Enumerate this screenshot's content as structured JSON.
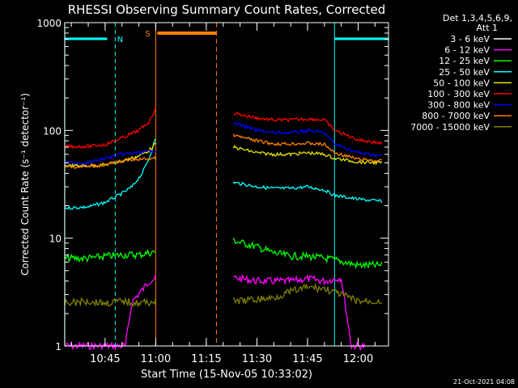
{
  "title": "RHESSI Observing Summary Count Rates, Corrected",
  "legend_header": [
    "Det 1,3,4,5,6,9,",
    "Att 1"
  ],
  "footer_date": "21-Oct-2021 04:08",
  "annotations": {
    "night_flag": "N",
    "saa_flag": "S"
  },
  "colors": {
    "background": "#000000",
    "axes": "#ffffff",
    "night_marker": "#00ffff",
    "saa_marker": "#ff8000"
  },
  "chart_data": {
    "type": "line",
    "title": "RHESSI Observing Summary Count Rates, Corrected",
    "xlabel": "Start Time (15-Nov-05 10:33:02)",
    "ylabel": "Corrected Count Rate (s⁻¹ detector⁻¹)",
    "yscale": "log",
    "xlim": [
      "10:33:02",
      "12:09:00"
    ],
    "ylim": [
      1,
      1000
    ],
    "x_ticks": [
      "10:45",
      "11:00",
      "11:15",
      "11:30",
      "11:45",
      "12:00"
    ],
    "y_ticks": [
      "1",
      "10",
      "100",
      "1000"
    ],
    "grid": false,
    "legend_position": "right",
    "gap": [
      "11:00",
      "11:23"
    ],
    "night_intervals": [
      [
        "10:33",
        "10:48"
      ],
      [
        "11:53",
        "12:09"
      ]
    ],
    "saa_interval": [
      "11:00",
      "11:18"
    ],
    "series": [
      {
        "name": "3 - 6 keV",
        "color": "#ffffff",
        "points": []
      },
      {
        "name": "6 - 12 keV",
        "color": "#ff00ff",
        "points": [
          [
            "10:33",
            1
          ],
          [
            "10:45",
            1
          ],
          [
            "10:51",
            1
          ],
          [
            "10:53",
            2.6
          ],
          [
            "10:56",
            3.3
          ],
          [
            "10:58",
            4.0
          ],
          [
            "11:00",
            4.3
          ],
          [
            "11:23",
            4.3
          ],
          [
            "11:30",
            4.0
          ],
          [
            "11:35",
            4.0
          ],
          [
            "11:40",
            4.0
          ],
          [
            "11:45",
            4.2
          ],
          [
            "11:50",
            4.0
          ],
          [
            "11:55",
            4.3
          ],
          [
            "11:58",
            1
          ],
          [
            "12:02",
            1
          ]
        ]
      },
      {
        "name": "12 - 25 keV",
        "color": "#00ff00",
        "points": [
          [
            "10:33",
            6.5
          ],
          [
            "10:40",
            6.5
          ],
          [
            "10:45",
            6.8
          ],
          [
            "10:50",
            7.0
          ],
          [
            "10:55",
            7.0
          ],
          [
            "11:00",
            7.5
          ],
          [
            "11:23",
            9.5
          ],
          [
            "11:30",
            8.3
          ],
          [
            "11:35",
            7.3
          ],
          [
            "11:40",
            6.8
          ],
          [
            "11:45",
            6.8
          ],
          [
            "11:50",
            6.5
          ],
          [
            "11:53",
            6.3
          ],
          [
            "12:00",
            5.6
          ],
          [
            "12:07",
            5.6
          ]
        ]
      },
      {
        "name": "25 - 50 keV",
        "color": "#00ffff",
        "points": [
          [
            "10:33",
            19
          ],
          [
            "10:40",
            19.5
          ],
          [
            "10:45",
            21.5
          ],
          [
            "10:50",
            26
          ],
          [
            "10:53",
            30
          ],
          [
            "10:56",
            40
          ],
          [
            "10:58",
            55
          ],
          [
            "11:00",
            85
          ],
          [
            "11:23",
            33
          ],
          [
            "11:30",
            30
          ],
          [
            "11:35",
            29
          ],
          [
            "11:40",
            29
          ],
          [
            "11:45",
            30
          ],
          [
            "11:50",
            28
          ],
          [
            "11:53",
            25
          ],
          [
            "12:00",
            23
          ],
          [
            "12:07",
            22
          ]
        ]
      },
      {
        "name": "50 - 100 keV",
        "color": "#e6e600",
        "points": [
          [
            "10:33",
            47
          ],
          [
            "10:40",
            47
          ],
          [
            "10:45",
            48
          ],
          [
            "10:50",
            52
          ],
          [
            "10:55",
            58
          ],
          [
            "10:58",
            65
          ],
          [
            "11:00",
            75
          ],
          [
            "11:23",
            70
          ],
          [
            "11:30",
            62
          ],
          [
            "11:35",
            60
          ],
          [
            "11:40",
            60
          ],
          [
            "11:45",
            62
          ],
          [
            "11:50",
            60
          ],
          [
            "11:53",
            55
          ],
          [
            "12:00",
            51
          ],
          [
            "12:07",
            50
          ]
        ]
      },
      {
        "name": "100 - 300 keV",
        "color": "#ff0000",
        "points": [
          [
            "10:33",
            71
          ],
          [
            "10:40",
            71
          ],
          [
            "10:45",
            74
          ],
          [
            "10:50",
            85
          ],
          [
            "10:55",
            100
          ],
          [
            "10:58",
            120
          ],
          [
            "11:00",
            160
          ],
          [
            "11:23",
            145
          ],
          [
            "11:30",
            130
          ],
          [
            "11:35",
            125
          ],
          [
            "11:40",
            125
          ],
          [
            "11:45",
            128
          ],
          [
            "11:50",
            125
          ],
          [
            "11:53",
            100
          ],
          [
            "12:00",
            82
          ],
          [
            "12:07",
            76
          ]
        ]
      },
      {
        "name": "300 - 800 keV",
        "color": "#0000ff",
        "points": [
          [
            "10:33",
            50
          ],
          [
            "10:40",
            50
          ],
          [
            "10:45",
            55
          ],
          [
            "10:50",
            60
          ],
          [
            "10:55",
            62
          ],
          [
            "11:00",
            65
          ],
          [
            "11:23",
            118
          ],
          [
            "11:30",
            100
          ],
          [
            "11:35",
            95
          ],
          [
            "11:40",
            95
          ],
          [
            "11:45",
            100
          ],
          [
            "11:50",
            95
          ],
          [
            "11:53",
            75
          ],
          [
            "12:00",
            62
          ],
          [
            "12:07",
            58
          ]
        ]
      },
      {
        "name": "800 - 7000 keV",
        "color": "#ff8000",
        "points": [
          [
            "10:33",
            46
          ],
          [
            "10:40",
            46
          ],
          [
            "10:45",
            48
          ],
          [
            "10:50",
            52
          ],
          [
            "10:55",
            54
          ],
          [
            "11:00",
            55
          ],
          [
            "11:23",
            90
          ],
          [
            "11:30",
            80
          ],
          [
            "11:35",
            75
          ],
          [
            "11:40",
            75
          ],
          [
            "11:45",
            76
          ],
          [
            "11:50",
            74
          ],
          [
            "11:53",
            62
          ],
          [
            "12:00",
            54
          ],
          [
            "12:07",
            52
          ]
        ]
      },
      {
        "name": "7000 - 15000 keV",
        "color": "#808000",
        "points": [
          [
            "10:33",
            2.5
          ],
          [
            "10:40",
            2.6
          ],
          [
            "10:45",
            2.5
          ],
          [
            "10:50",
            2.6
          ],
          [
            "10:55",
            2.5
          ],
          [
            "11:00",
            2.6
          ],
          [
            "11:23",
            2.6
          ],
          [
            "11:30",
            2.7
          ],
          [
            "11:35",
            2.8
          ],
          [
            "11:40",
            3.2
          ],
          [
            "11:45",
            3.5
          ],
          [
            "11:50",
            3.4
          ],
          [
            "11:55",
            3.0
          ],
          [
            "12:00",
            2.6
          ],
          [
            "12:07",
            2.6
          ]
        ]
      }
    ]
  }
}
